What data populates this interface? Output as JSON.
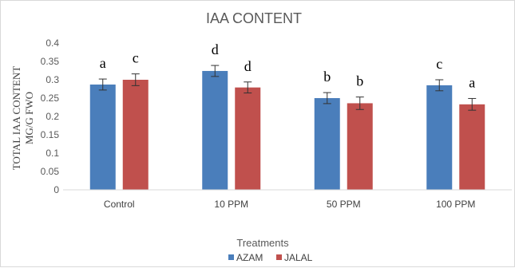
{
  "chart_data": {
    "type": "bar",
    "title": "IAA CONTENT",
    "xlabel": "Treatments",
    "ylabel_lines": [
      "TOTAL  IAA  CONTENT",
      "MG/G FWO"
    ],
    "categories": [
      "Control",
      "10 PPM",
      "50 PPM",
      "100 PPM"
    ],
    "ylim": [
      0,
      0.4
    ],
    "yticks": [
      "0",
      "0.05",
      "0.1",
      "0.15",
      "0.2",
      "0.25",
      "0.3",
      "0.35",
      "0.4"
    ],
    "ytick_values": [
      0,
      0.05,
      0.1,
      0.15,
      0.2,
      0.25,
      0.3,
      0.35,
      0.4
    ],
    "grid": false,
    "legend_position": "bottom",
    "series": [
      {
        "name": "AZAM",
        "color": "#4a7ebb",
        "values": [
          0.287,
          0.324,
          0.25,
          0.285
        ],
        "errors": [
          0.015,
          0.015,
          0.015,
          0.015
        ],
        "labels": [
          "a",
          "d",
          "b",
          "c"
        ]
      },
      {
        "name": "JALAL",
        "color": "#c0504d",
        "values": [
          0.3,
          0.279,
          0.236,
          0.233
        ],
        "errors": [
          0.016,
          0.015,
          0.017,
          0.016
        ],
        "labels": [
          "c",
          "d",
          "b",
          "a"
        ]
      }
    ]
  }
}
